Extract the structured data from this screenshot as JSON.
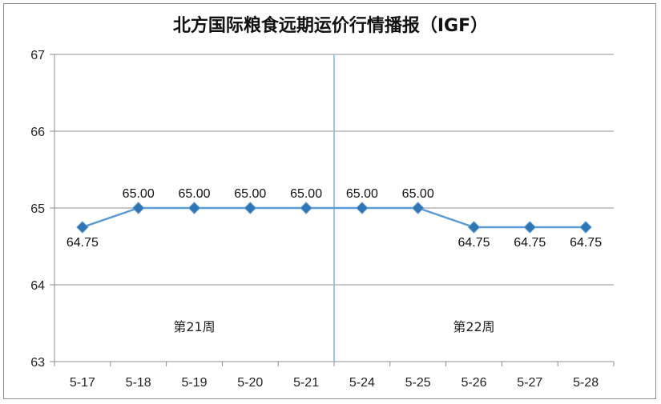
{
  "chart_data": {
    "type": "line",
    "title": "北方国际粮食远期运价行情播报（IGF）",
    "xlabel": "",
    "ylabel": "",
    "categories": [
      "5-17",
      "5-18",
      "5-19",
      "5-20",
      "5-21",
      "5-24",
      "5-25",
      "5-26",
      "5-27",
      "5-28"
    ],
    "values": [
      64.75,
      65.0,
      65.0,
      65.0,
      65.0,
      65.0,
      65.0,
      64.75,
      64.75,
      64.75
    ],
    "data_labels": [
      "64.75",
      "65.00",
      "65.00",
      "65.00",
      "65.00",
      "65.00",
      "65.00",
      "64.75",
      "64.75",
      "64.75"
    ],
    "ylim": [
      63,
      67
    ],
    "yticks": [
      "63",
      "64",
      "65",
      "66",
      "67"
    ],
    "grid": true,
    "legend": "none",
    "annotations": [
      {
        "text": "第21周",
        "section": "left"
      },
      {
        "text": "第22周",
        "section": "right"
      }
    ],
    "week_divider_after_index": 4,
    "colors": {
      "line": "#5b9bd5",
      "marker": "#2e75b6",
      "divider": "#9dc3e6",
      "grid": "#8c8c8c"
    }
  }
}
